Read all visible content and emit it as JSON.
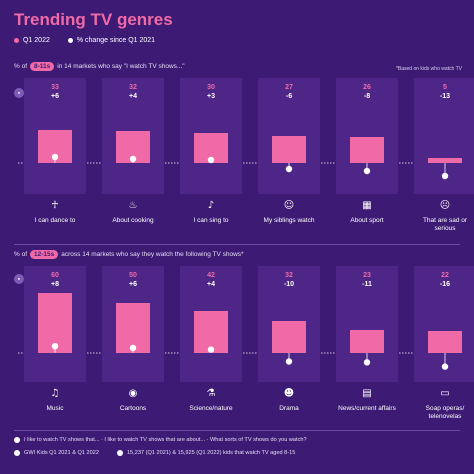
{
  "header": {
    "title": "Trending TV genres",
    "legend_q1": "Q1 2022",
    "legend_change": "% change since Q1 2021"
  },
  "colors": {
    "background": "#3d1a73",
    "column": "#4e2687",
    "bar": "#f06aa7",
    "value": "#f06aa7",
    "change": "#ffffff"
  },
  "section1": {
    "prefix": "% of",
    "pill": "8-11s",
    "suffix": "in 14 markets who say \"I watch TV shows...\"",
    "note": "*Based on kids who watch TV"
  },
  "section2": {
    "prefix": "% of",
    "pill": "12-15s",
    "suffix": "across 14 markets who say they watch the following TV shows*"
  },
  "chart_data": [
    {
      "type": "bar",
      "categories": [
        "I can dance to",
        "About cooking",
        "I can sing to",
        "My siblings watch",
        "About sport",
        "That are sad or serious"
      ],
      "icons": [
        "dancer-icon",
        "cooking-pot-icon",
        "microphone-icon",
        "siblings-icon",
        "sport-icon",
        "sad-face-icon"
      ],
      "series": [
        {
          "name": "Q1 2022",
          "values": [
            33,
            32,
            30,
            27,
            26,
            5
          ]
        },
        {
          "name": "% change since Q1 2021",
          "values": [
            6,
            4,
            3,
            -6,
            -8,
            -13
          ]
        }
      ],
      "value_labels": [
        "33",
        "32",
        "30",
        "27",
        "26",
        "5"
      ],
      "change_labels": [
        "+6",
        "+4",
        "+3",
        "-6",
        "-8",
        "-13"
      ]
    },
    {
      "type": "bar",
      "categories": [
        "Music",
        "Cartoons",
        "Science/nature",
        "Drama",
        "News/current affairs",
        "Soap operas/ telenovelas"
      ],
      "icons": [
        "music-note-icon",
        "cartoon-icon",
        "flask-icon",
        "drama-icon",
        "newspaper-icon",
        "tv-icon"
      ],
      "series": [
        {
          "name": "Q1 2022",
          "values": [
            60,
            50,
            42,
            32,
            23,
            22
          ]
        },
        {
          "name": "% change since Q1 2021",
          "values": [
            8,
            6,
            4,
            -10,
            -11,
            -16
          ]
        }
      ],
      "value_labels": [
        "60",
        "50",
        "42",
        "32",
        "23",
        "22"
      ],
      "change_labels": [
        "+8",
        "+6",
        "+4",
        "-10",
        "-11",
        "-16"
      ]
    }
  ],
  "footer": {
    "question": "I like to watch TV shows that... · I like to watch TV shows that are about... · What sorts of TV shows do you watch?",
    "source": "GWI Kids Q1 2021 & Q1 2022",
    "sample": "15,237 (Q1 2021) & 15,925 (Q1 2022) kids that watch TV aged 8-15"
  }
}
